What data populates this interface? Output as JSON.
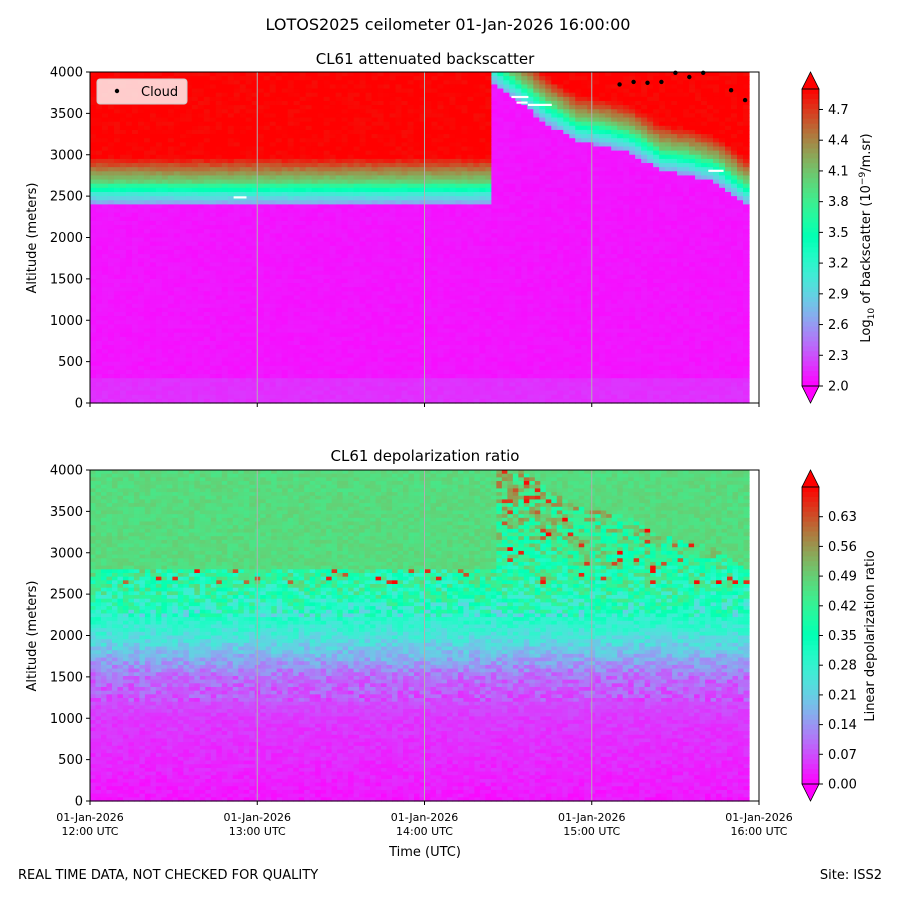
{
  "suptitle": "LOTOS2025 ceilometer 01-Jan-2026 16:00:00",
  "footer": {
    "left": "REAL TIME DATA, NOT CHECKED FOR QUALITY",
    "right": "Site: ISS2"
  },
  "colors": {
    "colormap": "rainbow",
    "grid": "#b0b0b0",
    "cloud_marker": "#000000",
    "no_data": "#ffffff"
  },
  "chart_data": [
    {
      "type": "heatmap",
      "title": "CL61 attenuated backscatter",
      "ylabel": "Altitude (meters)",
      "xlabel": "",
      "xlim": [
        "01-Jan-2026 12:00 UTC",
        "01-Jan-2026 16:00 UTC"
      ],
      "ylim": [
        0,
        4000
      ],
      "yticks": [
        "0",
        "500",
        "1000",
        "1500",
        "2000",
        "2500",
        "3000",
        "3500",
        "4000"
      ],
      "grid": "vertical at hourly ticks",
      "legend": {
        "placement": "upper-left",
        "entries": [
          "Cloud"
        ]
      },
      "colorbar": {
        "label_parts": [
          "Log",
          "10",
          " of backscatter (10",
          "−9",
          "/m.sr)"
        ],
        "ticks": [
          "2.0",
          "2.3",
          "2.6",
          "2.9",
          "3.2",
          "3.5",
          "3.8",
          "4.1",
          "4.4",
          "4.7"
        ],
        "range": [
          2.0,
          4.9
        ],
        "extend": "both"
      },
      "description_of_values": {
        "background_level": 2.05,
        "near_surface_level": 2.2,
        "high_backscatter_region": {
          "time_start": "14:25 UTC",
          "boundary_altitude_m": [
            {
              "t": "14:25",
              "alt": 4000
            },
            {
              "t": "14:35",
              "alt": 3750
            },
            {
              "t": "14:45",
              "alt": 3500
            },
            {
              "t": "14:55",
              "alt": 3300
            },
            {
              "t": "15:05",
              "alt": 3250
            },
            {
              "t": "15:15",
              "alt": 3150
            },
            {
              "t": "15:25",
              "alt": 2950
            },
            {
              "t": "15:35",
              "alt": 2900
            },
            {
              "t": "15:45",
              "alt": 2800
            },
            {
              "t": "15:55",
              "alt": 2550
            }
          ],
          "max_level": 4.9
        },
        "cloud_base_points": [
          {
            "t": "15:10",
            "alt": 3850
          },
          {
            "t": "15:15",
            "alt": 3880
          },
          {
            "t": "15:20",
            "alt": 3870
          },
          {
            "t": "15:25",
            "alt": 3880
          },
          {
            "t": "15:30",
            "alt": 3990
          },
          {
            "t": "15:35",
            "alt": 3940
          },
          {
            "t": "15:40",
            "alt": 3990
          },
          {
            "t": "15:50",
            "alt": 3780
          },
          {
            "t": "15:55",
            "alt": 3660
          }
        ]
      }
    },
    {
      "type": "heatmap",
      "title": "CL61 depolarization ratio",
      "ylabel": "Altitude (meters)",
      "xlabel": "Time (UTC)",
      "xticks": [
        [
          "01-Jan-2026",
          "12:00 UTC"
        ],
        [
          "01-Jan-2026",
          "13:00 UTC"
        ],
        [
          "01-Jan-2026",
          "14:00 UTC"
        ],
        [
          "01-Jan-2026",
          "15:00 UTC"
        ],
        [
          "01-Jan-2026",
          "16:00 UTC"
        ]
      ],
      "ylim": [
        0,
        4000
      ],
      "yticks": [
        "0",
        "500",
        "1000",
        "1500",
        "2000",
        "2500",
        "3000",
        "3500",
        "4000"
      ],
      "grid": "vertical at hourly ticks",
      "colorbar": {
        "label": "Linear depolarization ratio",
        "ticks": [
          "0.00",
          "0.07",
          "0.14",
          "0.21",
          "0.28",
          "0.35",
          "0.42",
          "0.49",
          "0.56",
          "0.63"
        ],
        "range": [
          0.0,
          0.7
        ],
        "extend": "both"
      },
      "description_of_values": {
        "profile_by_altitude_m": [
          {
            "alt": 0,
            "ratio": 0.02
          },
          {
            "alt": 1000,
            "ratio": 0.05
          },
          {
            "alt": 1500,
            "ratio": 0.1
          },
          {
            "alt": 2000,
            "ratio": 0.25
          },
          {
            "alt": 2500,
            "ratio": 0.36
          },
          {
            "alt": 3000,
            "ratio": 0.42
          },
          {
            "alt": 3500,
            "ratio": 0.47
          },
          {
            "alt": 4000,
            "ratio": 0.5
          }
        ],
        "cloud_region_level": 0.47
      }
    }
  ]
}
